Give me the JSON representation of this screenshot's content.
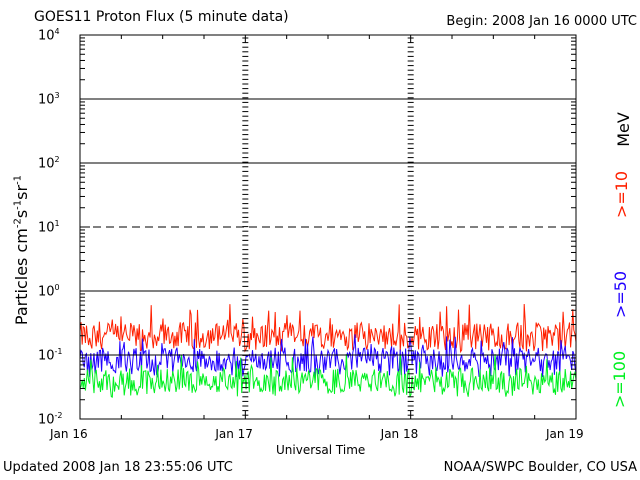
{
  "header": {
    "title": "GOES11 Proton Flux (5 minute data)",
    "begin": "Begin: 2008 Jan 16 0000 UTC"
  },
  "footer": {
    "updated": "Updated 2008 Jan 18 23:55:06 UTC",
    "credit": "NOAA/SWPC Boulder, CO USA"
  },
  "chart_data": {
    "type": "line",
    "title": "GOES11 Proton Flux (5 minute data)",
    "xlabel": "Universal Time",
    "ylabel": "Particles cm-2s-1sr-1",
    "y_scale": "log",
    "ylim": [
      0.01,
      10000
    ],
    "y_ticks": [
      {
        "value": 0.01,
        "exp": "-2"
      },
      {
        "value": 0.1,
        "exp": "-1"
      },
      {
        "value": 1,
        "exp": "0"
      },
      {
        "value": 10,
        "exp": "1"
      },
      {
        "value": 100,
        "exp": "2"
      },
      {
        "value": 1000,
        "exp": "3"
      },
      {
        "value": 10000,
        "exp": "4"
      }
    ],
    "x_ticks": [
      "Jan 16",
      "Jan 17",
      "Jan 18",
      "Jan 19"
    ],
    "xlim": [
      "2008-01-16 00:00",
      "2008-01-19 00:00"
    ],
    "thresholds": [
      {
        "value": 10,
        "style": "dashed"
      },
      {
        "value": 1,
        "style": "solid"
      }
    ],
    "unit_label": "MeV",
    "series": [
      {
        "name": ">=10",
        "color": "#ff2000",
        "typical": 0.2,
        "min": 0.11,
        "max": 0.65
      },
      {
        "name": ">=50",
        "color": "#2000ff",
        "typical": 0.085,
        "min": 0.045,
        "max": 0.22
      },
      {
        "name": ">=100",
        "color": "#00f020",
        "typical": 0.04,
        "min": 0.022,
        "max": 0.11
      }
    ]
  }
}
